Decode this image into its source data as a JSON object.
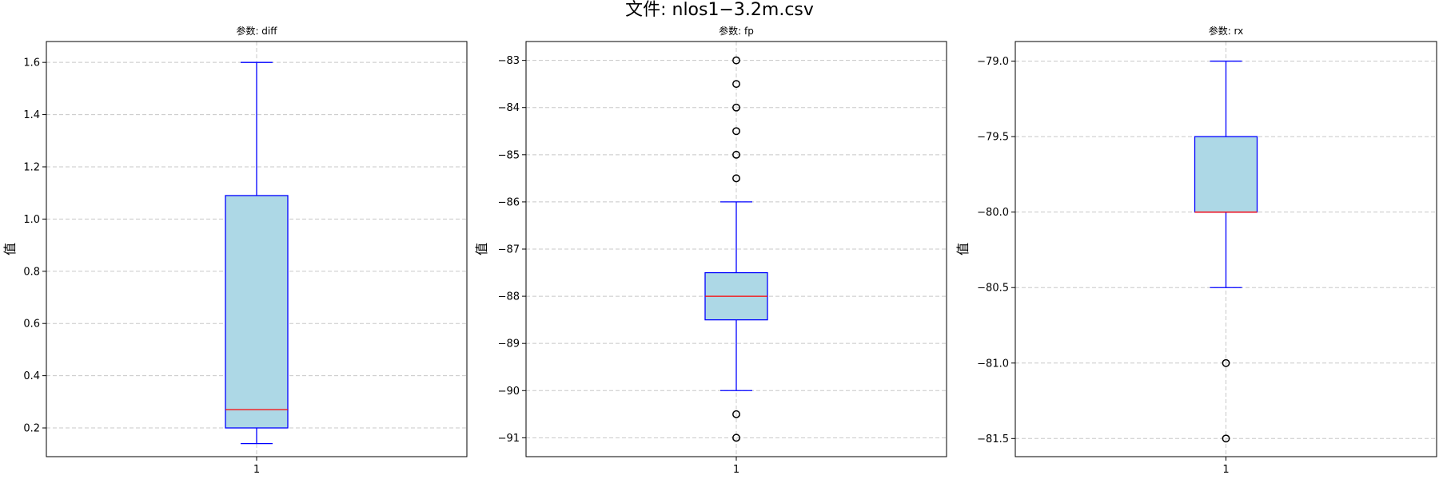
{
  "figure_title": "文件: nlos1−3.2m.csv",
  "colors": {
    "box_fill": "#add8e6",
    "box_edge": "#0000ff",
    "median": "#ff0000",
    "grid": "#c8c8c8",
    "flier_edge": "#000000"
  },
  "chart_data": [
    {
      "type": "box",
      "title": "参数: diff",
      "ylabel": "值",
      "xticks": [
        "1"
      ],
      "ylim": [
        0.09,
        1.68
      ],
      "yticks": [
        0.2,
        0.4,
        0.6,
        0.8,
        1.0,
        1.2,
        1.4,
        1.6
      ],
      "ytick_labels": [
        "0.2",
        "0.4",
        "0.6",
        "0.8",
        "1.0",
        "1.2",
        "1.4",
        "1.6"
      ],
      "grid": true,
      "box": {
        "whisker_low": 0.14,
        "q1": 0.2,
        "median": 0.27,
        "q3": 1.09,
        "whisker_high": 1.6
      },
      "outliers": []
    },
    {
      "type": "box",
      "title": "参数: fp",
      "ylabel": "值",
      "xticks": [
        "1"
      ],
      "ylim": [
        -91.4,
        -82.6
      ],
      "yticks": [
        -91,
        -90,
        -89,
        -88,
        -87,
        -86,
        -85,
        -84,
        -83
      ],
      "ytick_labels": [
        "−91",
        "−90",
        "−89",
        "−88",
        "−87",
        "−86",
        "−85",
        "−84",
        "−83"
      ],
      "grid": true,
      "box": {
        "whisker_low": -90,
        "q1": -88.5,
        "median": -88,
        "q3": -87.5,
        "whisker_high": -86
      },
      "outliers": [
        -83,
        -83.5,
        -84,
        -84.5,
        -85,
        -85.5,
        -90.5,
        -91
      ]
    },
    {
      "type": "box",
      "title": "参数: rx",
      "ylabel": "值",
      "xticks": [
        "1"
      ],
      "ylim": [
        -81.62,
        -78.87
      ],
      "yticks": [
        -81.5,
        -81.0,
        -80.5,
        -80.0,
        -79.5,
        -79.0
      ],
      "ytick_labels": [
        "−81.5",
        "−81.0",
        "−80.5",
        "−80.0",
        "−79.5",
        "−79.0"
      ],
      "grid": true,
      "box": {
        "whisker_low": -80.5,
        "q1": -80,
        "median": -80,
        "q3": -79.5,
        "whisker_high": -79
      },
      "outliers": [
        -81,
        -81.5
      ]
    }
  ]
}
